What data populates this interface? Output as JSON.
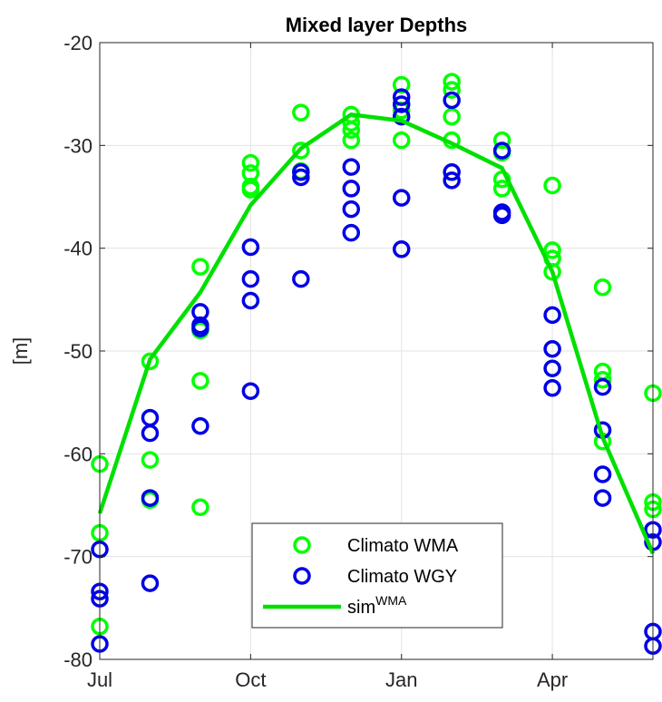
{
  "chart_data": {
    "type": "scatter",
    "title": "Mixed layer Depths",
    "xlabel": "",
    "ylabel": "[m]",
    "xlim": [
      0,
      11
    ],
    "ylim": [
      -80,
      -20
    ],
    "x_ticks": [
      {
        "value": 0,
        "label": "Jul"
      },
      {
        "value": 3,
        "label": "Oct"
      },
      {
        "value": 6,
        "label": "Jan"
      },
      {
        "value": 9,
        "label": "Apr"
      }
    ],
    "y_ticks": [
      -80,
      -70,
      -60,
      -50,
      -40,
      -30,
      -20
    ],
    "grid": true,
    "legend_position": "bottom-center",
    "series": [
      {
        "name": "Climato WMA",
        "kind": "scatter",
        "marker": "circle",
        "color": "#00ff00",
        "points": [
          [
            0,
            -61
          ],
          [
            0,
            -67.7
          ],
          [
            0,
            -76.8
          ],
          [
            1,
            -51
          ],
          [
            1,
            -60.6
          ],
          [
            1,
            -64.5
          ],
          [
            2,
            -41.8
          ],
          [
            2,
            -48
          ],
          [
            2,
            -52.9
          ],
          [
            2,
            -65.2
          ],
          [
            3,
            -31.7
          ],
          [
            3,
            -32.7
          ],
          [
            3,
            -34
          ],
          [
            3,
            -34.3
          ],
          [
            4,
            -26.8
          ],
          [
            4,
            -30.5
          ],
          [
            4,
            -32.5
          ],
          [
            5,
            -27
          ],
          [
            5,
            -27.8
          ],
          [
            5,
            -28.5
          ],
          [
            5,
            -29.5
          ],
          [
            6,
            -24.1
          ],
          [
            6,
            -26.6
          ],
          [
            6,
            -29.5
          ],
          [
            7,
            -23.8
          ],
          [
            7,
            -24.6
          ],
          [
            7,
            -27.2
          ],
          [
            7,
            -29.5
          ],
          [
            8,
            -29.5
          ],
          [
            8,
            -30.7
          ],
          [
            8,
            -33.3
          ],
          [
            8,
            -34.2
          ],
          [
            9,
            -33.9
          ],
          [
            9,
            -40.2
          ],
          [
            9,
            -41
          ],
          [
            9,
            -42.3
          ],
          [
            10,
            -43.8
          ],
          [
            10,
            -52
          ],
          [
            10,
            -52.8
          ],
          [
            10,
            -58.8
          ],
          [
            11,
            -54.1
          ],
          [
            11,
            -64.7
          ],
          [
            11,
            -65.4
          ]
        ]
      },
      {
        "name": "Climato WGY",
        "kind": "scatter",
        "marker": "circle",
        "color": "#0000e6",
        "points": [
          [
            0,
            -69.3
          ],
          [
            0,
            -73.4
          ],
          [
            0,
            -74.1
          ],
          [
            0,
            -78.5
          ],
          [
            1,
            -56.5
          ],
          [
            1,
            -58
          ],
          [
            1,
            -64.3
          ],
          [
            1,
            -72.6
          ],
          [
            2,
            -46.2
          ],
          [
            2,
            -47.5
          ],
          [
            2,
            -47.8
          ],
          [
            2,
            -57.3
          ],
          [
            3,
            -39.9
          ],
          [
            3,
            -43
          ],
          [
            3,
            -45.1
          ],
          [
            3,
            -53.9
          ],
          [
            4,
            -32.6
          ],
          [
            4,
            -33.1
          ],
          [
            4,
            -43
          ],
          [
            5,
            -32.1
          ],
          [
            5,
            -34.2
          ],
          [
            5,
            -36.2
          ],
          [
            5,
            -38.5
          ],
          [
            6,
            -25.3
          ],
          [
            6,
            -26
          ],
          [
            6,
            -27.2
          ],
          [
            6,
            -35.1
          ],
          [
            6,
            -40.1
          ],
          [
            7,
            -25.6
          ],
          [
            7,
            -32.6
          ],
          [
            7,
            -33.4
          ],
          [
            8,
            -30.5
          ],
          [
            8,
            -36.5
          ],
          [
            8,
            -36.8
          ],
          [
            9,
            -46.5
          ],
          [
            9,
            -49.8
          ],
          [
            9,
            -51.7
          ],
          [
            9,
            -53.6
          ],
          [
            10,
            -53.5
          ],
          [
            10,
            -57.7
          ],
          [
            10,
            -62
          ],
          [
            10,
            -64.3
          ],
          [
            11,
            -67.4
          ],
          [
            11,
            -68.6
          ],
          [
            11,
            -77.3
          ],
          [
            11,
            -78.7
          ]
        ]
      },
      {
        "name": "sim",
        "name_superscript": "WMA",
        "kind": "line",
        "color": "#00e000",
        "points": [
          [
            0,
            -65.8
          ],
          [
            1,
            -50.8
          ],
          [
            2,
            -44.3
          ],
          [
            3,
            -35.8
          ],
          [
            4,
            -30.3
          ],
          [
            5,
            -27.0
          ],
          [
            6,
            -27.6
          ],
          [
            7,
            -29.8
          ],
          [
            8,
            -32.2
          ],
          [
            9,
            -42.3
          ],
          [
            10,
            -58.4
          ],
          [
            11,
            -69.7
          ]
        ]
      }
    ]
  }
}
